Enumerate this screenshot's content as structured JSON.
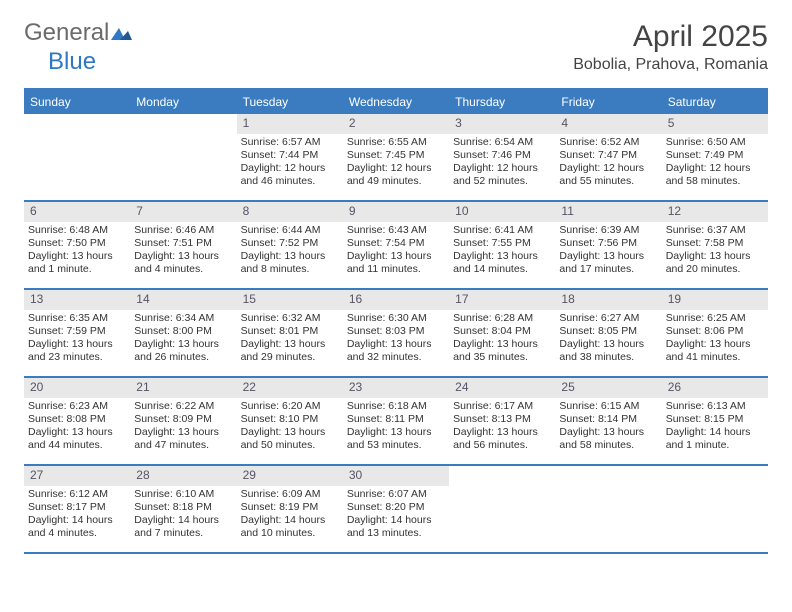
{
  "brand": {
    "word1": "General",
    "word2": "Blue"
  },
  "title": "April 2025",
  "location": "Bobolia, Prahova, Romania",
  "weekdays": [
    "Sunday",
    "Monday",
    "Tuesday",
    "Wednesday",
    "Thursday",
    "Friday",
    "Saturday"
  ],
  "colors": {
    "header_blue": "#3a7cbf",
    "daynum_bg": "#e8e8e8",
    "text": "#333333",
    "logo_gray": "#6b6b6b",
    "logo_blue": "#2f78c3"
  },
  "leading_blanks": 2,
  "days": [
    {
      "n": 1,
      "sunrise": "6:57 AM",
      "sunset": "7:44 PM",
      "daylight": "12 hours and 46 minutes."
    },
    {
      "n": 2,
      "sunrise": "6:55 AM",
      "sunset": "7:45 PM",
      "daylight": "12 hours and 49 minutes."
    },
    {
      "n": 3,
      "sunrise": "6:54 AM",
      "sunset": "7:46 PM",
      "daylight": "12 hours and 52 minutes."
    },
    {
      "n": 4,
      "sunrise": "6:52 AM",
      "sunset": "7:47 PM",
      "daylight": "12 hours and 55 minutes."
    },
    {
      "n": 5,
      "sunrise": "6:50 AM",
      "sunset": "7:49 PM",
      "daylight": "12 hours and 58 minutes."
    },
    {
      "n": 6,
      "sunrise": "6:48 AM",
      "sunset": "7:50 PM",
      "daylight": "13 hours and 1 minute."
    },
    {
      "n": 7,
      "sunrise": "6:46 AM",
      "sunset": "7:51 PM",
      "daylight": "13 hours and 4 minutes."
    },
    {
      "n": 8,
      "sunrise": "6:44 AM",
      "sunset": "7:52 PM",
      "daylight": "13 hours and 8 minutes."
    },
    {
      "n": 9,
      "sunrise": "6:43 AM",
      "sunset": "7:54 PM",
      "daylight": "13 hours and 11 minutes."
    },
    {
      "n": 10,
      "sunrise": "6:41 AM",
      "sunset": "7:55 PM",
      "daylight": "13 hours and 14 minutes."
    },
    {
      "n": 11,
      "sunrise": "6:39 AM",
      "sunset": "7:56 PM",
      "daylight": "13 hours and 17 minutes."
    },
    {
      "n": 12,
      "sunrise": "6:37 AM",
      "sunset": "7:58 PM",
      "daylight": "13 hours and 20 minutes."
    },
    {
      "n": 13,
      "sunrise": "6:35 AM",
      "sunset": "7:59 PM",
      "daylight": "13 hours and 23 minutes."
    },
    {
      "n": 14,
      "sunrise": "6:34 AM",
      "sunset": "8:00 PM",
      "daylight": "13 hours and 26 minutes."
    },
    {
      "n": 15,
      "sunrise": "6:32 AM",
      "sunset": "8:01 PM",
      "daylight": "13 hours and 29 minutes."
    },
    {
      "n": 16,
      "sunrise": "6:30 AM",
      "sunset": "8:03 PM",
      "daylight": "13 hours and 32 minutes."
    },
    {
      "n": 17,
      "sunrise": "6:28 AM",
      "sunset": "8:04 PM",
      "daylight": "13 hours and 35 minutes."
    },
    {
      "n": 18,
      "sunrise": "6:27 AM",
      "sunset": "8:05 PM",
      "daylight": "13 hours and 38 minutes."
    },
    {
      "n": 19,
      "sunrise": "6:25 AM",
      "sunset": "8:06 PM",
      "daylight": "13 hours and 41 minutes."
    },
    {
      "n": 20,
      "sunrise": "6:23 AM",
      "sunset": "8:08 PM",
      "daylight": "13 hours and 44 minutes."
    },
    {
      "n": 21,
      "sunrise": "6:22 AM",
      "sunset": "8:09 PM",
      "daylight": "13 hours and 47 minutes."
    },
    {
      "n": 22,
      "sunrise": "6:20 AM",
      "sunset": "8:10 PM",
      "daylight": "13 hours and 50 minutes."
    },
    {
      "n": 23,
      "sunrise": "6:18 AM",
      "sunset": "8:11 PM",
      "daylight": "13 hours and 53 minutes."
    },
    {
      "n": 24,
      "sunrise": "6:17 AM",
      "sunset": "8:13 PM",
      "daylight": "13 hours and 56 minutes."
    },
    {
      "n": 25,
      "sunrise": "6:15 AM",
      "sunset": "8:14 PM",
      "daylight": "13 hours and 58 minutes."
    },
    {
      "n": 26,
      "sunrise": "6:13 AM",
      "sunset": "8:15 PM",
      "daylight": "14 hours and 1 minute."
    },
    {
      "n": 27,
      "sunrise": "6:12 AM",
      "sunset": "8:17 PM",
      "daylight": "14 hours and 4 minutes."
    },
    {
      "n": 28,
      "sunrise": "6:10 AM",
      "sunset": "8:18 PM",
      "daylight": "14 hours and 7 minutes."
    },
    {
      "n": 29,
      "sunrise": "6:09 AM",
      "sunset": "8:19 PM",
      "daylight": "14 hours and 10 minutes."
    },
    {
      "n": 30,
      "sunrise": "6:07 AM",
      "sunset": "8:20 PM",
      "daylight": "14 hours and 13 minutes."
    }
  ],
  "labels": {
    "sunrise": "Sunrise:",
    "sunset": "Sunset:",
    "daylight": "Daylight:"
  }
}
